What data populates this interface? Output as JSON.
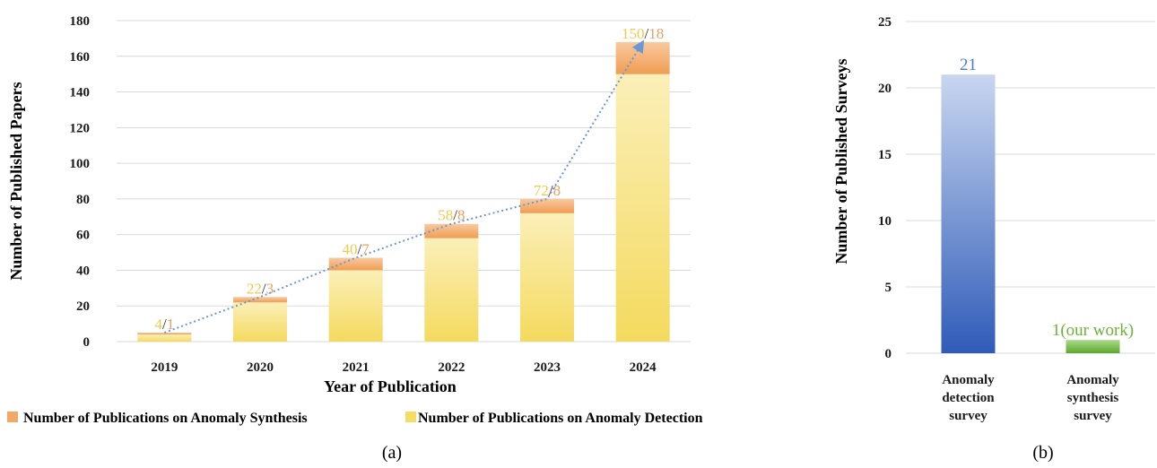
{
  "chart_data": [
    {
      "type": "bar",
      "stacked": true,
      "caption": "(a)",
      "categories": [
        "2019",
        "2020",
        "2021",
        "2022",
        "2023",
        "2024"
      ],
      "series": [
        {
          "name": "Number of Publications on Anomaly Detection",
          "values": [
            4,
            22,
            40,
            58,
            72,
            150
          ],
          "color": "#f5dc63"
        },
        {
          "name": "Number of Publications on Anomaly Synthesis",
          "values": [
            1,
            3,
            7,
            8,
            8,
            18
          ],
          "color": "#f3a866"
        }
      ],
      "data_labels": [
        {
          "detection": "4",
          "separator": "/",
          "synthesis": "1"
        },
        {
          "detection": "22",
          "separator": "/",
          "synthesis": "3"
        },
        {
          "detection": "40",
          "separator": "/",
          "synthesis": "7"
        },
        {
          "detection": "58",
          "separator": "/",
          "synthesis": "8"
        },
        {
          "detection": "72",
          "separator": "/",
          "synthesis": "8"
        },
        {
          "detection": "150",
          "separator": "/",
          "synthesis": "18"
        }
      ],
      "trend_line": {
        "style": "dotted",
        "color": "#6a97d6",
        "arrow": true
      },
      "xlabel": "Year of Publication",
      "ylabel": "Number of Published Papers",
      "ylim": [
        0,
        180
      ],
      "yticks": [
        0,
        20,
        40,
        60,
        80,
        100,
        120,
        140,
        160,
        180
      ],
      "grid": true,
      "legend_position": "bottom"
    },
    {
      "type": "bar",
      "caption": "(b)",
      "categories": [
        [
          "Anomaly",
          "detection",
          "survey"
        ],
        [
          "Anomaly",
          "synthesis",
          "survey"
        ]
      ],
      "values": [
        21,
        1
      ],
      "data_labels": [
        "21",
        "1(our work)"
      ],
      "colors": [
        "#3a65bf",
        "#6fb23a"
      ],
      "label_colors": [
        "#4a7ac9",
        "#6fb23a"
      ],
      "ylabel": "Number of Published Surveys",
      "ylim": [
        0,
        25
      ],
      "yticks": [
        0,
        5,
        10,
        15,
        20,
        25
      ],
      "grid": true
    }
  ]
}
